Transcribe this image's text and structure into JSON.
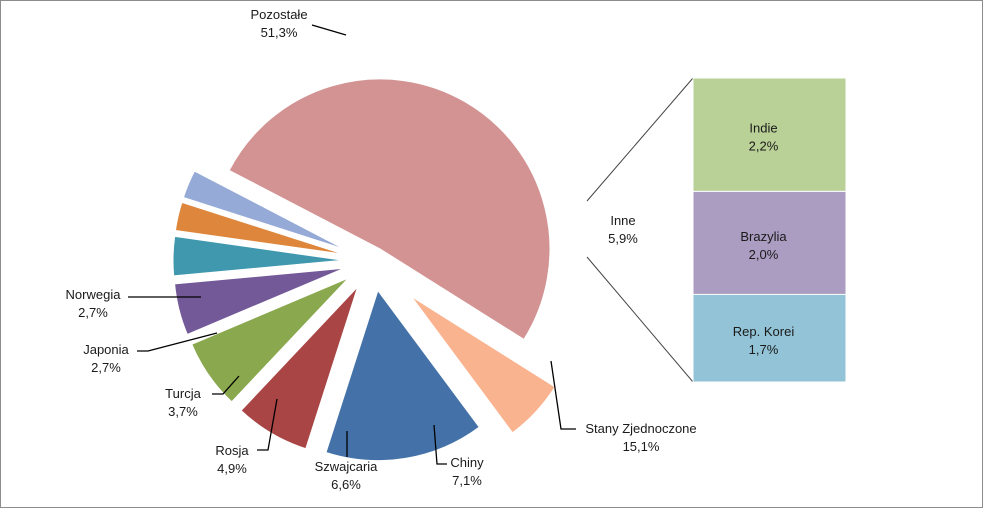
{
  "chart_data": {
    "type": "pie",
    "title": "",
    "legend": "none",
    "slices": [
      {
        "name": "Pozostałe",
        "value": 51.3,
        "value_label": "51,3%",
        "color": "#d39393"
      },
      {
        "name": "Inne",
        "value": 5.9,
        "value_label": "5,9%",
        "color": "#f9b48f"
      },
      {
        "name": "Stany Zjednoczone",
        "value": 15.1,
        "value_label": "15,1%",
        "color": "#4472a8"
      },
      {
        "name": "Chiny",
        "value": 7.1,
        "value_label": "7,1%",
        "color": "#a94545"
      },
      {
        "name": "Szwajcaria",
        "value": 6.6,
        "value_label": "6,6%",
        "color": "#8aa84e"
      },
      {
        "name": "Rosja",
        "value": 4.9,
        "value_label": "4,9%",
        "color": "#735998"
      },
      {
        "name": "Turcja",
        "value": 3.7,
        "value_label": "3,7%",
        "color": "#3f98ae"
      },
      {
        "name": "Japonia",
        "value": 2.7,
        "value_label": "2,7%",
        "color": "#de873c"
      },
      {
        "name": "Norwegia",
        "value": 2.7,
        "value_label": "2,7%",
        "color": "#95aad6"
      }
    ],
    "breakdown": {
      "of": "Inne",
      "items": [
        {
          "name": "Indie",
          "value": 2.2,
          "value_label": "2,2%",
          "color": "#b9d097"
        },
        {
          "name": "Brazylia",
          "value": 2.0,
          "value_label": "2,0%",
          "color": "#ab9cc1"
        },
        {
          "name": "Rep. Korei",
          "value": 1.7,
          "value_label": "1,7%",
          "color": "#92c3d6"
        }
      ]
    }
  }
}
